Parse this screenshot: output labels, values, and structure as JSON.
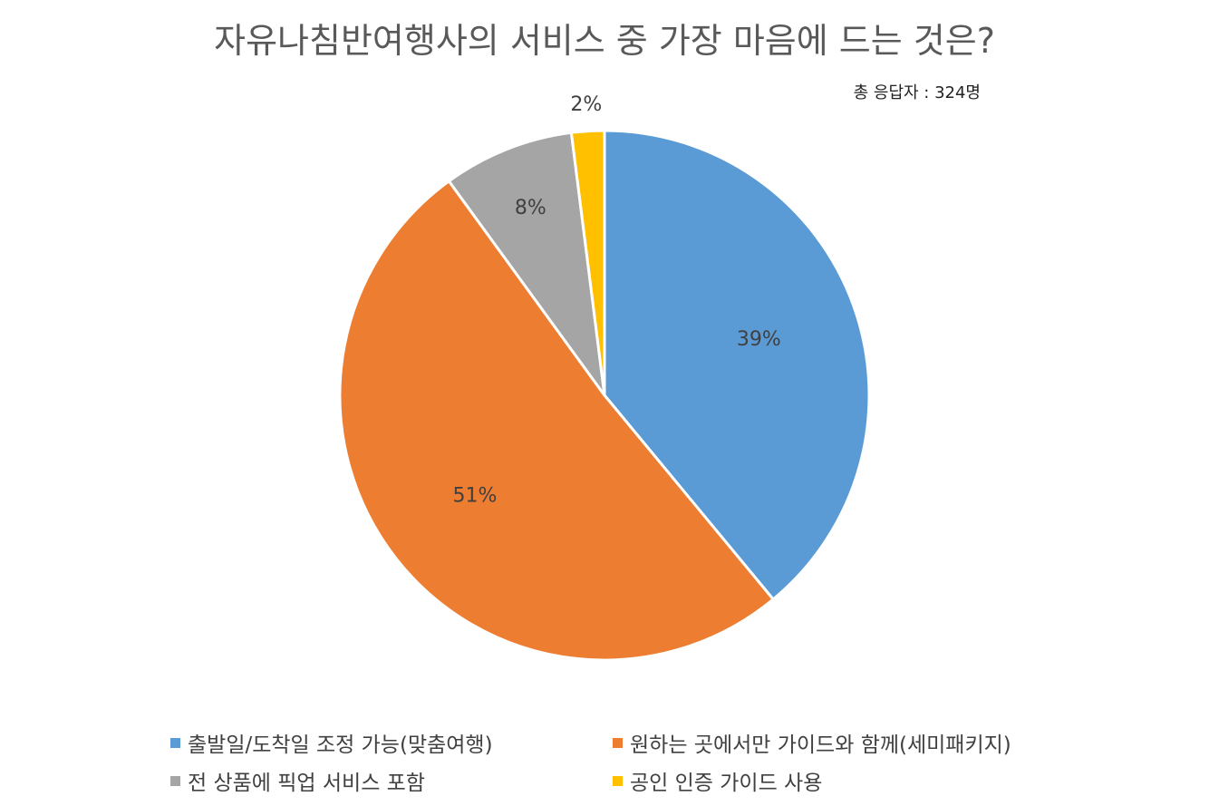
{
  "chart_data": {
    "type": "pie",
    "title": "자유나침반여행사의 서비스 중 가장 마음에 드는 것은?",
    "subtitle": "총 응답자 : 324명",
    "start_angle_deg": 0,
    "direction": "clockwise",
    "legend_position": "bottom",
    "slices": [
      {
        "label": "출발일/도착일 조정 가능(맞춤여행)",
        "value": 39,
        "display": "39%",
        "color": "#5B9BD5"
      },
      {
        "label": "원하는 곳에서만 가이드와 함께(세미패키지)",
        "value": 51,
        "display": "51%",
        "color": "#ED7D31"
      },
      {
        "label": "전 상품에 픽업 서비스 포함",
        "value": 8,
        "display": "8%",
        "color": "#A5A5A5"
      },
      {
        "label": "공인 인증 가이드 사용",
        "value": 2,
        "display": "2%",
        "color": "#FFC000"
      }
    ]
  }
}
